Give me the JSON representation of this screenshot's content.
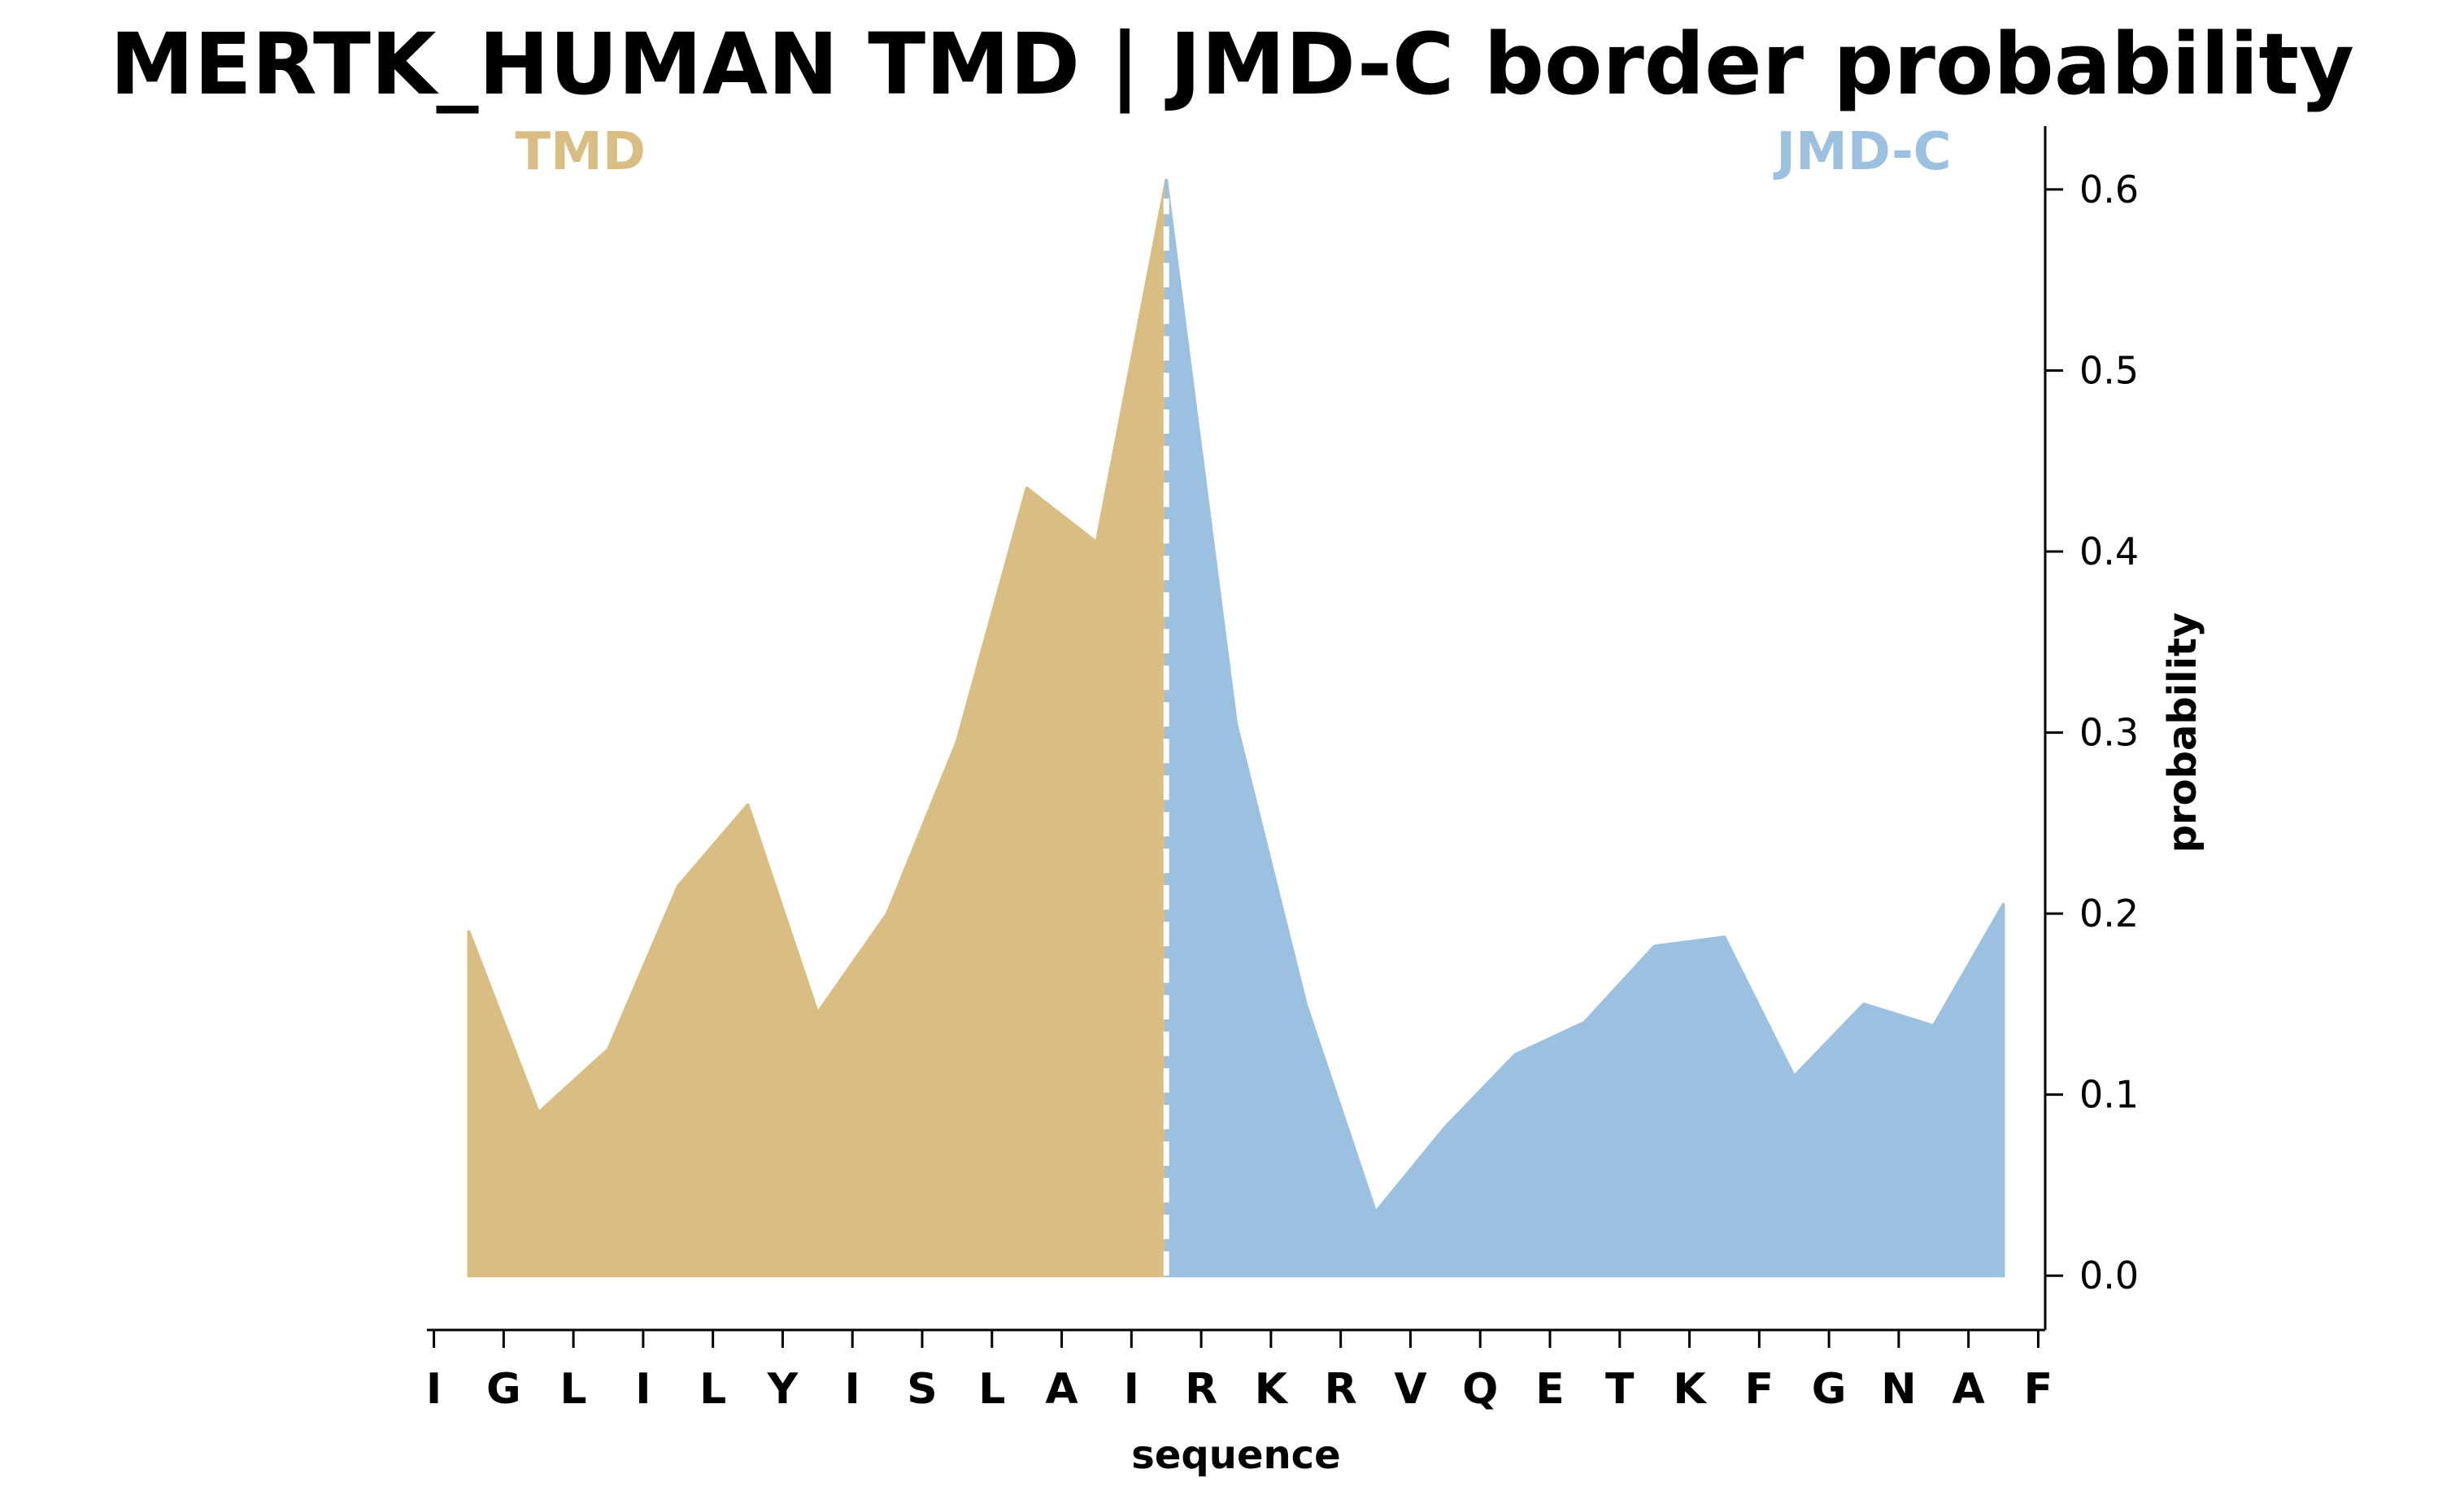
{
  "chart_data": {
    "type": "area",
    "title": "MERTK_HUMAN TMD | JMD-C border probability",
    "xlabel": "sequence",
    "ylabel": "probability",
    "categories": [
      "I",
      "G",
      "L",
      "I",
      "L",
      "Y",
      "I",
      "S",
      "L",
      "A",
      "I",
      "R",
      "K",
      "R",
      "V",
      "Q",
      "E",
      "T",
      "K",
      "F",
      "G",
      "N",
      "A",
      "F"
    ],
    "x": [
      0.5,
      1.5,
      2.5,
      3.5,
      4.5,
      5.5,
      6.5,
      7.5,
      8.5,
      9.5,
      10.5,
      11.5,
      12.5,
      13.5,
      14.5,
      15.5,
      16.5,
      17.5,
      18.5,
      19.5,
      20.5,
      21.5,
      22.5
    ],
    "values": [
      0.19,
      0.09,
      0.125,
      0.215,
      0.26,
      0.145,
      0.2,
      0.295,
      0.435,
      0.405,
      0.605,
      0.305,
      0.15,
      0.035,
      0.082,
      0.122,
      0.14,
      0.182,
      0.187,
      0.11,
      0.15,
      0.138,
      0.205
    ],
    "border_x": 10.5,
    "regions": [
      {
        "name": "TMD",
        "color": "#d9bd82",
        "x_from": 0.5,
        "x_to": 10.5
      },
      {
        "name": "JMD-C",
        "color": "#9bc0e0",
        "x_from": 10.5,
        "x_to": 22.5
      }
    ],
    "yticks": [
      "0.0",
      "0.1",
      "0.2",
      "0.3",
      "0.4",
      "0.5",
      "0.6"
    ],
    "ylim": [
      -0.03,
      0.635
    ],
    "xlim": [
      -0.1,
      23.1
    ],
    "grid": false,
    "legend": "none",
    "y_axis_side": "right",
    "border_line_color": "#ffffff"
  }
}
